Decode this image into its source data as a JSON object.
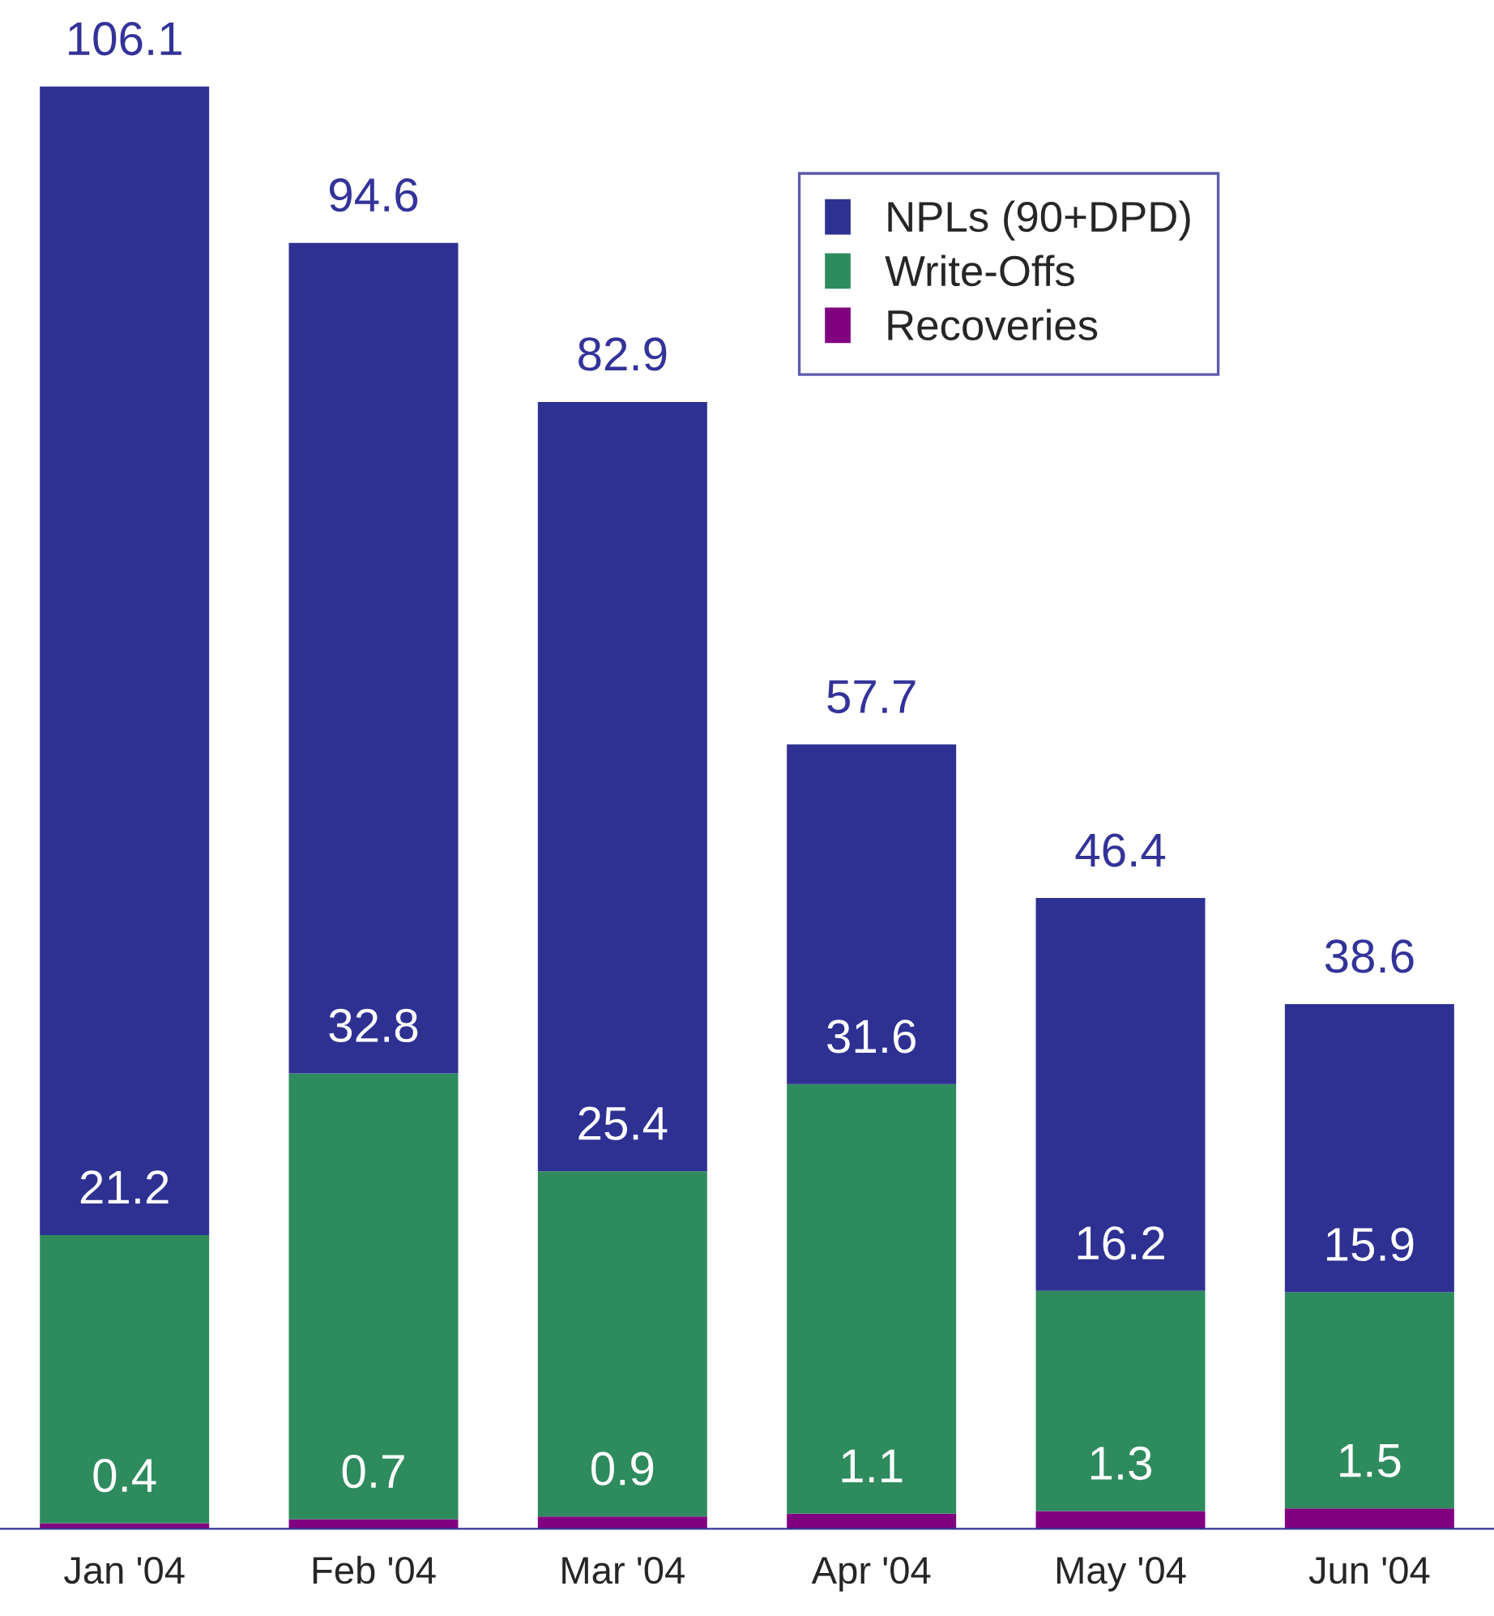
{
  "chart_data": {
    "type": "bar",
    "stacked": true,
    "categories": [
      "Jan '04",
      "Feb '04",
      "Mar '04",
      "Apr '04",
      "May '04",
      "Jun '04"
    ],
    "series": [
      {
        "name": "Recoveries",
        "color": "#800080",
        "values": [
          0.4,
          0.7,
          0.9,
          1.1,
          1.3,
          1.5
        ],
        "value_labels": [
          "0.4",
          "0.7",
          "0.9",
          "1.1",
          "1.3",
          "1.5"
        ]
      },
      {
        "name": "Write-Offs",
        "color": "#2e8b5e",
        "values": [
          21.2,
          32.8,
          25.4,
          31.6,
          16.2,
          15.9
        ],
        "value_labels": [
          "21.2",
          "32.8",
          "25.4",
          "31.6",
          "16.2",
          "15.9"
        ]
      },
      {
        "name": "NPLs (90+DPD)",
        "color": "#2e3192",
        "values": [
          84.5,
          61.1,
          56.6,
          25.0,
          28.9,
          21.2
        ]
      }
    ],
    "totals": [
      "106.1",
      "94.6",
      "82.9",
      "57.7",
      "46.4",
      "38.6"
    ],
    "tick_labels": "x",
    "legend": "top right",
    "grid": false
  }
}
